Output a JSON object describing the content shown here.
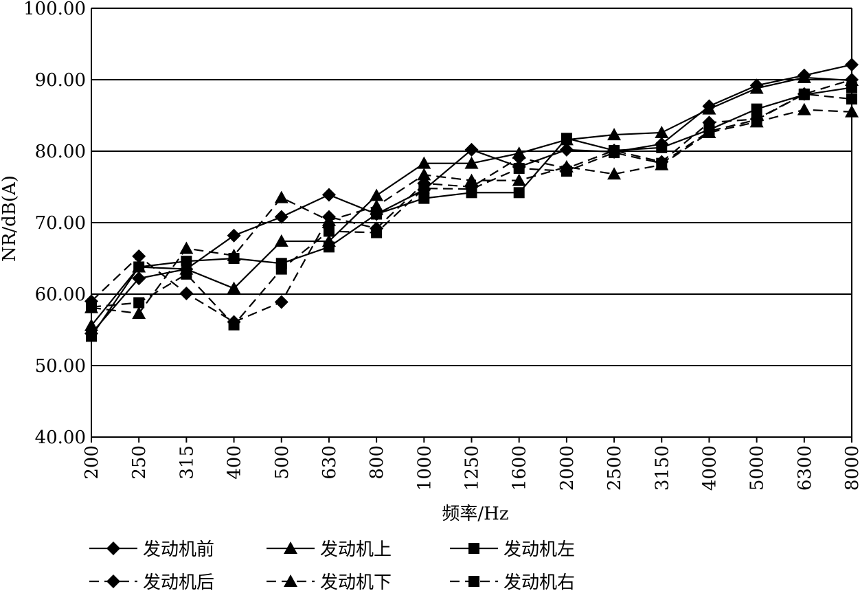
{
  "chart_data": {
    "type": "line",
    "title": "",
    "xlabel": "频率/Hz",
    "ylabel": "NR/dB(A)",
    "ylim": [
      40,
      100
    ],
    "yticks": [
      "40.00",
      "50.00",
      "60.00",
      "70.00",
      "80.00",
      "90.00",
      "100.00"
    ],
    "categories": [
      "200",
      "250",
      "315",
      "400",
      "500",
      "630",
      "800",
      "1000",
      "1250",
      "1600",
      "2000",
      "2500",
      "3150",
      "4000",
      "5000",
      "6300",
      "8000"
    ],
    "grid": "horizontal",
    "legend_position": "bottom",
    "series": [
      {
        "name": "发动机前",
        "marker": "diamond",
        "dash": "solid",
        "values": [
          54.5,
          62.2,
          63.5,
          68.2,
          70.8,
          73.9,
          71.2,
          74.6,
          80.2,
          77.8,
          80.2,
          79.9,
          81.0,
          86.3,
          89.2,
          90.6,
          92.1
        ]
      },
      {
        "name": "发动机上",
        "marker": "triangle",
        "dash": "solid",
        "values": [
          55.6,
          63.8,
          63.5,
          60.8,
          67.4,
          67.4,
          73.8,
          78.3,
          78.3,
          79.7,
          81.6,
          82.3,
          82.6,
          85.9,
          88.8,
          90.3,
          89.9
        ]
      },
      {
        "name": "发动机左",
        "marker": "square",
        "dash": "solid",
        "values": [
          54.1,
          63.8,
          64.6,
          65.0,
          64.3,
          66.6,
          71.2,
          73.4,
          74.2,
          74.2,
          81.8,
          80.1,
          80.5,
          83.0,
          85.9,
          87.9,
          88.9
        ]
      },
      {
        "name": "发动机后",
        "marker": "diamond",
        "dash": "dashed",
        "values": [
          59.0,
          65.3,
          60.1,
          56.1,
          58.9,
          70.8,
          69.2,
          75.5,
          75.0,
          79.1,
          77.6,
          80.1,
          78.5,
          84.0,
          84.5,
          88.0,
          90.0
        ]
      },
      {
        "name": "发动机下",
        "marker": "triangle",
        "dash": "dashed",
        "values": [
          58.1,
          57.3,
          66.4,
          65.4,
          73.5,
          70.3,
          72.3,
          76.7,
          75.9,
          75.9,
          77.8,
          76.8,
          78.1,
          82.6,
          84.1,
          85.8,
          85.5
        ]
      },
      {
        "name": "发动机右",
        "marker": "square",
        "dash": "dashed",
        "values": [
          58.2,
          58.8,
          62.8,
          55.7,
          63.5,
          68.8,
          68.6,
          74.8,
          74.7,
          77.6,
          77.2,
          79.8,
          78.3,
          82.8,
          84.4,
          88.0,
          87.3
        ]
      }
    ]
  }
}
